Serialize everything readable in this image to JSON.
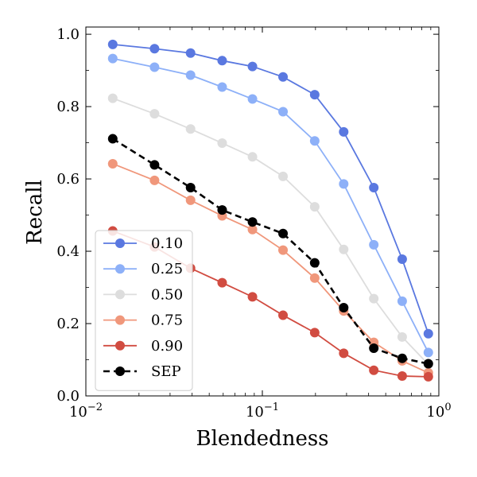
{
  "chart_data": {
    "type": "line",
    "xlabel": "Blendedness",
    "ylabel": "Recall",
    "xscale": "log",
    "xlim": [
      0.01,
      1.0
    ],
    "ylim": [
      0.0,
      1.02
    ],
    "x": [
      0.0142,
      0.0245,
      0.0392,
      0.0592,
      0.0879,
      0.131,
      0.198,
      0.289,
      0.428,
      0.62,
      0.872
    ],
    "x_ticks": [
      {
        "value": 0.01,
        "base": "10",
        "exp": "−2"
      },
      {
        "value": 0.1,
        "base": "10",
        "exp": "−1"
      },
      {
        "value": 1.0,
        "base": "10",
        "exp": "0"
      }
    ],
    "y_ticks": [
      {
        "value": 0.0,
        "label": "0.0"
      },
      {
        "value": 0.2,
        "label": "0.2"
      },
      {
        "value": 0.4,
        "label": "0.4"
      },
      {
        "value": 0.6,
        "label": "0.6"
      },
      {
        "value": 0.8,
        "label": "0.8"
      },
      {
        "value": 1.0,
        "label": "1.0"
      }
    ],
    "legend_position": "lower-left",
    "series": [
      {
        "name": "0.10",
        "color": "#5a78e0",
        "style": "solid",
        "values": [
          0.972,
          0.96,
          0.948,
          0.927,
          0.911,
          0.882,
          0.833,
          0.73,
          0.576,
          0.378,
          0.172
        ]
      },
      {
        "name": "0.25",
        "color": "#8db0f8",
        "style": "solid",
        "values": [
          0.933,
          0.909,
          0.887,
          0.854,
          0.821,
          0.786,
          0.705,
          0.586,
          0.418,
          0.262,
          0.12
        ]
      },
      {
        "name": "0.50",
        "color": "#dddddd",
        "style": "solid",
        "values": [
          0.823,
          0.78,
          0.738,
          0.699,
          0.661,
          0.607,
          0.523,
          0.405,
          0.269,
          0.163,
          0.087
        ]
      },
      {
        "name": "0.75",
        "color": "#f0977b",
        "style": "solid",
        "values": [
          0.642,
          0.596,
          0.541,
          0.498,
          0.46,
          0.403,
          0.326,
          0.235,
          0.148,
          0.097,
          0.064
        ]
      },
      {
        "name": "0.90",
        "color": "#d14c41",
        "style": "solid",
        "values": [
          0.456,
          0.412,
          0.353,
          0.313,
          0.274,
          0.223,
          0.175,
          0.118,
          0.071,
          0.055,
          0.053
        ]
      },
      {
        "name": "SEP",
        "color": "#000000",
        "style": "dashed",
        "values": [
          0.711,
          0.639,
          0.576,
          0.514,
          0.481,
          0.449,
          0.368,
          0.244,
          0.132,
          0.104,
          0.089
        ]
      }
    ]
  }
}
